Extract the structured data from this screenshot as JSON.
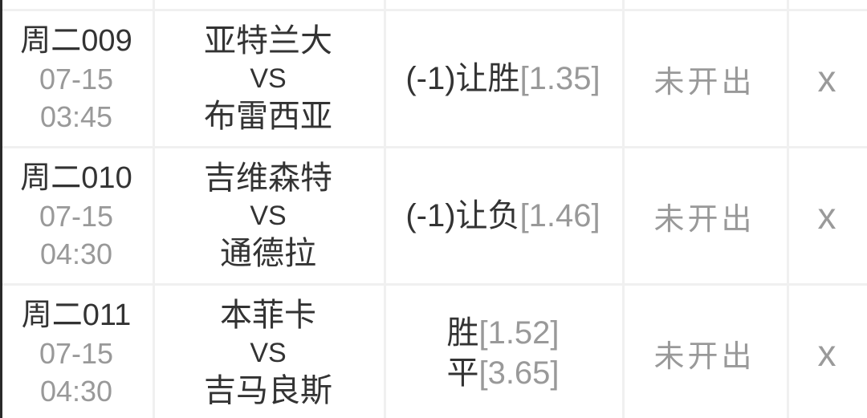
{
  "colors": {
    "background": "#ffffff",
    "dark_text": "#333333",
    "gray_text": "#999999",
    "divider": "#f0f0f0",
    "left_edge": "#2a2a2a"
  },
  "table": {
    "rows": [
      {
        "id": "周二009",
        "date": "07-15",
        "time": "03:45",
        "home": "亚特兰大",
        "vs": "VS",
        "away": "布雷西亚",
        "odds": [
          {
            "label": "(-1)让胜",
            "value": "[1.35]"
          }
        ],
        "status": "未开出",
        "action": "x"
      },
      {
        "id": "周二010",
        "date": "07-15",
        "time": "04:30",
        "home": "吉维森特",
        "vs": "VS",
        "away": "通德拉",
        "odds": [
          {
            "label": "(-1)让负",
            "value": "[1.46]"
          }
        ],
        "status": "未开出",
        "action": "x"
      },
      {
        "id": "周二011",
        "date": "07-15",
        "time": "04:30",
        "home": "本菲卡",
        "vs": "VS",
        "away": "吉马良斯",
        "odds": [
          {
            "label": "胜",
            "value": "[1.52]"
          },
          {
            "label": "平",
            "value": "[3.65]"
          }
        ],
        "status": "未开出",
        "action": "x"
      }
    ]
  }
}
